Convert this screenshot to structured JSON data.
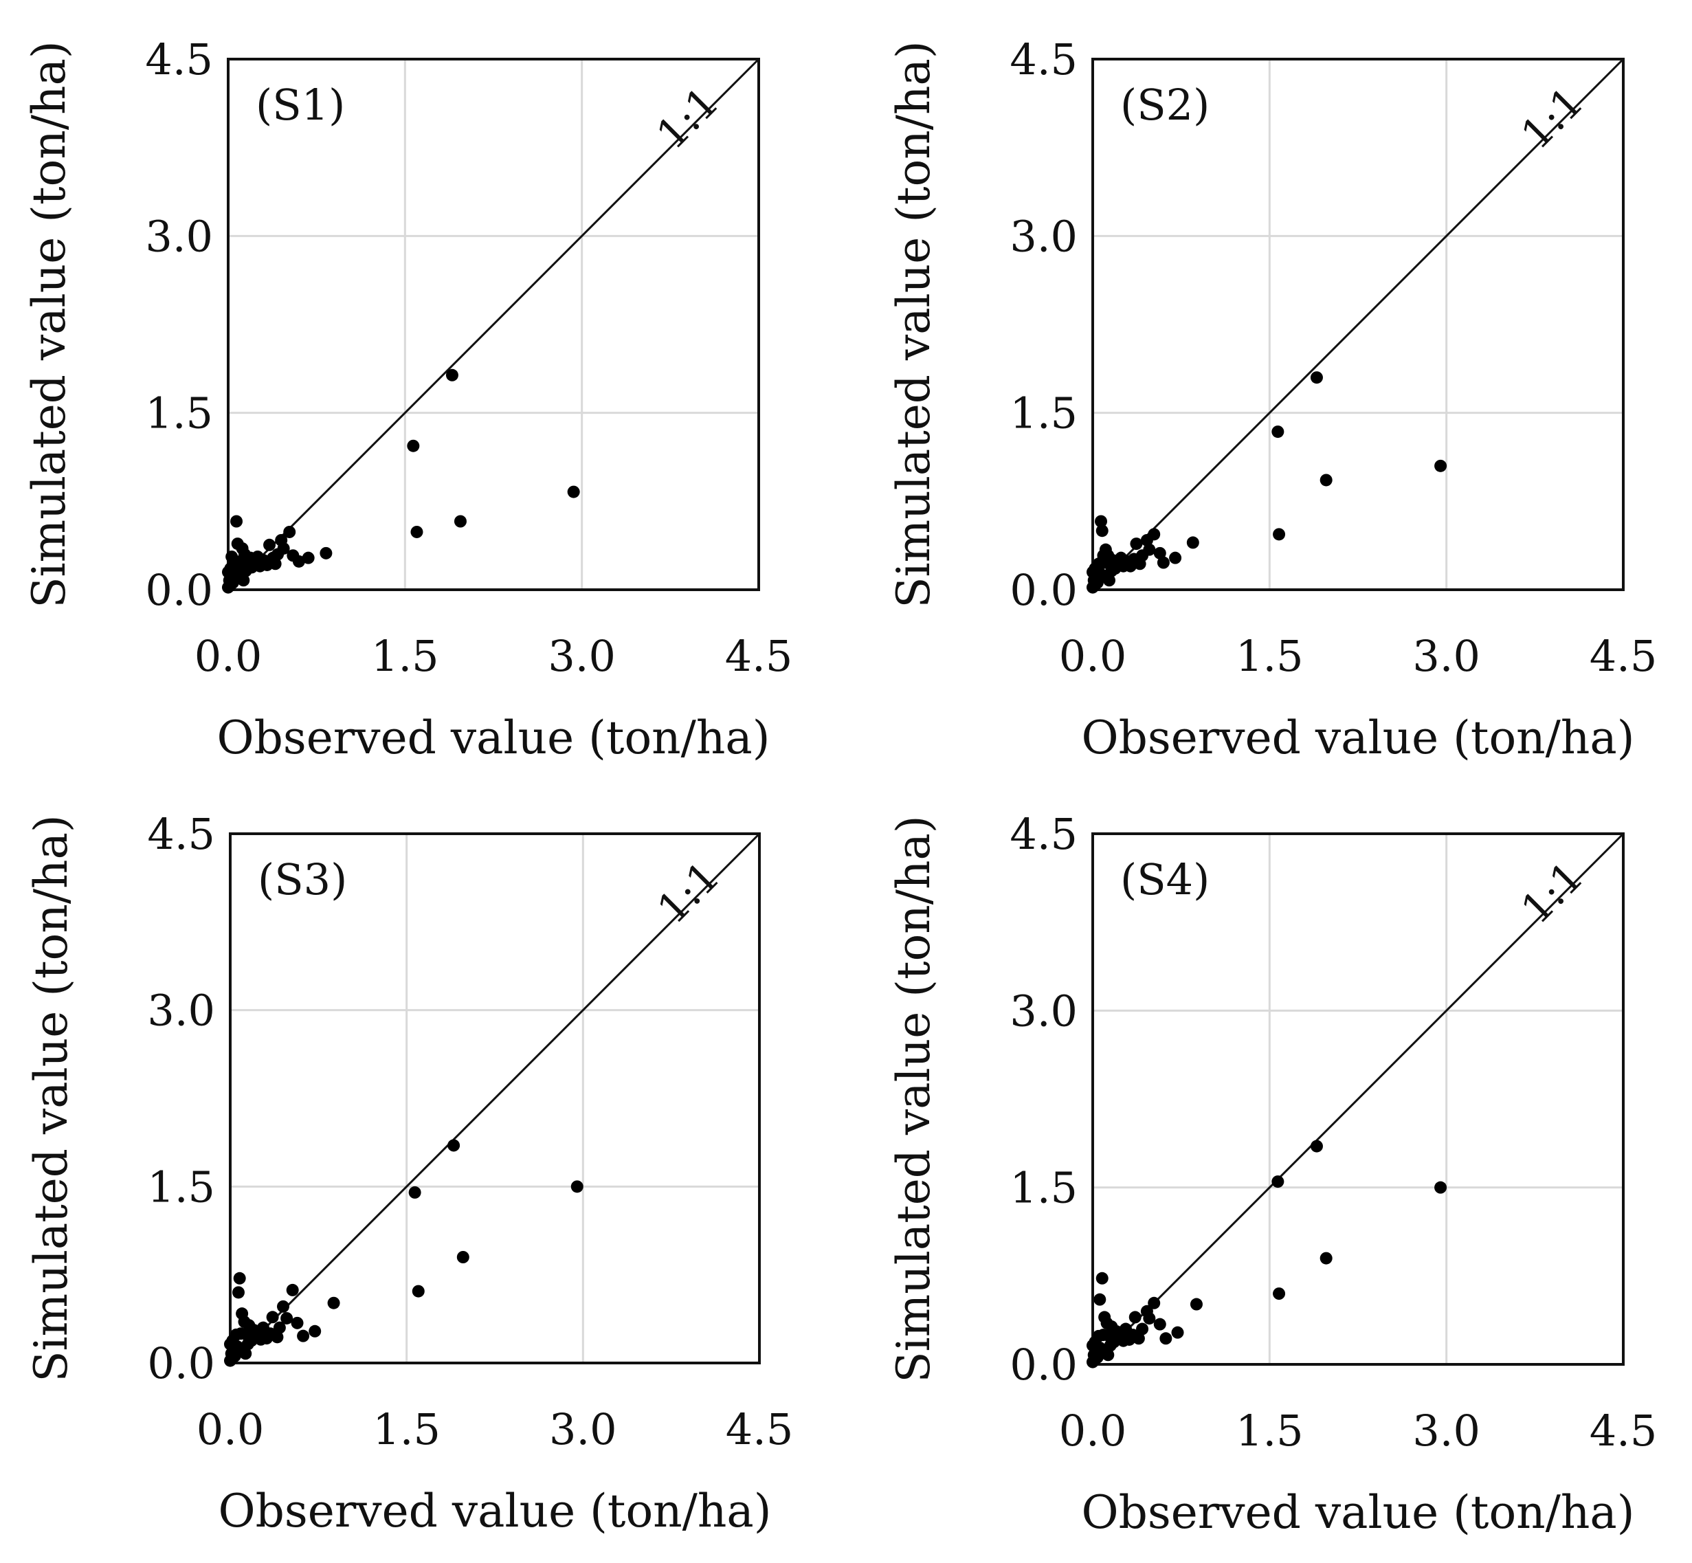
{
  "figure": {
    "one_to_one_label": "1:1",
    "x_ticks": [
      "0.0",
      "1.5",
      "3.0",
      "4.5"
    ],
    "y_ticks": [
      "0.0",
      "1.5",
      "3.0",
      "4.5"
    ]
  },
  "chart_data": [
    {
      "type": "scatter",
      "panel_label": "(S1)",
      "xlabel": "Observed value (ton/ha)",
      "ylabel": "Simulated value (ton/ha)",
      "xlim": [
        0,
        4.5
      ],
      "ylim": [
        0,
        4.5
      ],
      "grid": true,
      "reference_line": "1:1",
      "points": [
        [
          1.9,
          1.82
        ],
        [
          1.57,
          1.22
        ],
        [
          2.93,
          0.83
        ],
        [
          1.97,
          0.58
        ],
        [
          1.6,
          0.49
        ],
        [
          0.83,
          0.31
        ],
        [
          0.68,
          0.27
        ],
        [
          0.6,
          0.24
        ],
        [
          0.55,
          0.29
        ],
        [
          0.52,
          0.49
        ],
        [
          0.47,
          0.35
        ],
        [
          0.45,
          0.42
        ],
        [
          0.42,
          0.3
        ],
        [
          0.4,
          0.22
        ],
        [
          0.38,
          0.27
        ],
        [
          0.35,
          0.38
        ],
        [
          0.33,
          0.21
        ],
        [
          0.3,
          0.25
        ],
        [
          0.27,
          0.2
        ],
        [
          0.25,
          0.28
        ],
        [
          0.22,
          0.23
        ],
        [
          0.2,
          0.19
        ],
        [
          0.18,
          0.26
        ],
        [
          0.16,
          0.22
        ],
        [
          0.14,
          0.3
        ],
        [
          0.12,
          0.35
        ],
        [
          0.1,
          0.24
        ],
        [
          0.09,
          0.18
        ],
        [
          0.08,
          0.39
        ],
        [
          0.07,
          0.58
        ],
        [
          0.06,
          0.14
        ],
        [
          0.05,
          0.1
        ],
        [
          0.05,
          0.22
        ],
        [
          0.04,
          0.06
        ],
        [
          0.03,
          0.12
        ],
        [
          0.02,
          0.04
        ],
        [
          0.02,
          0.18
        ],
        [
          0.01,
          0.08
        ],
        [
          0.0,
          0.02
        ],
        [
          0.0,
          0.15
        ],
        [
          0.11,
          0.12
        ],
        [
          0.15,
          0.16
        ],
        [
          0.19,
          0.27
        ],
        [
          0.03,
          0.28
        ],
        [
          0.13,
          0.08
        ]
      ]
    },
    {
      "type": "scatter",
      "panel_label": "(S2)",
      "xlabel": "Observed value (ton/ha)",
      "ylabel": "Simulated value (ton/ha)",
      "xlim": [
        0,
        4.5
      ],
      "ylim": [
        0,
        4.5
      ],
      "grid": true,
      "reference_line": "1:1",
      "points": [
        [
          1.9,
          1.8
        ],
        [
          1.57,
          1.34
        ],
        [
          2.95,
          1.05
        ],
        [
          1.98,
          0.93
        ],
        [
          1.58,
          0.47
        ],
        [
          0.85,
          0.4
        ],
        [
          0.7,
          0.27
        ],
        [
          0.6,
          0.23
        ],
        [
          0.57,
          0.31
        ],
        [
          0.52,
          0.47
        ],
        [
          0.48,
          0.34
        ],
        [
          0.46,
          0.42
        ],
        [
          0.42,
          0.29
        ],
        [
          0.4,
          0.22
        ],
        [
          0.37,
          0.39
        ],
        [
          0.35,
          0.26
        ],
        [
          0.32,
          0.2
        ],
        [
          0.29,
          0.24
        ],
        [
          0.26,
          0.2
        ],
        [
          0.24,
          0.27
        ],
        [
          0.21,
          0.22
        ],
        [
          0.19,
          0.18
        ],
        [
          0.17,
          0.25
        ],
        [
          0.15,
          0.21
        ],
        [
          0.13,
          0.29
        ],
        [
          0.11,
          0.34
        ],
        [
          0.1,
          0.23
        ],
        [
          0.08,
          0.5
        ],
        [
          0.07,
          0.58
        ],
        [
          0.06,
          0.14
        ],
        [
          0.05,
          0.1
        ],
        [
          0.05,
          0.22
        ],
        [
          0.04,
          0.06
        ],
        [
          0.03,
          0.12
        ],
        [
          0.02,
          0.04
        ],
        [
          0.02,
          0.18
        ],
        [
          0.01,
          0.08
        ],
        [
          0.0,
          0.02
        ],
        [
          0.0,
          0.15
        ],
        [
          0.12,
          0.12
        ],
        [
          0.16,
          0.16
        ],
        [
          0.09,
          0.29
        ],
        [
          0.14,
          0.08
        ]
      ]
    },
    {
      "type": "scatter",
      "panel_label": "(S3)",
      "xlabel": "Observed value (ton/ha)",
      "ylabel": "Simulated value (ton/ha)",
      "xlim": [
        0,
        4.5
      ],
      "ylim": [
        0,
        4.5
      ],
      "grid": true,
      "reference_line": "1:1",
      "points": [
        [
          1.9,
          1.85
        ],
        [
          2.95,
          1.5
        ],
        [
          1.57,
          1.45
        ],
        [
          1.98,
          0.9
        ],
        [
          1.6,
          0.61
        ],
        [
          0.88,
          0.51
        ],
        [
          0.72,
          0.27
        ],
        [
          0.62,
          0.23
        ],
        [
          0.57,
          0.34
        ],
        [
          0.53,
          0.62
        ],
        [
          0.48,
          0.38
        ],
        [
          0.45,
          0.48
        ],
        [
          0.42,
          0.3
        ],
        [
          0.4,
          0.22
        ],
        [
          0.36,
          0.39
        ],
        [
          0.34,
          0.25
        ],
        [
          0.31,
          0.21
        ],
        [
          0.28,
          0.3
        ],
        [
          0.26,
          0.2
        ],
        [
          0.23,
          0.27
        ],
        [
          0.21,
          0.23
        ],
        [
          0.18,
          0.19
        ],
        [
          0.16,
          0.32
        ],
        [
          0.14,
          0.24
        ],
        [
          0.12,
          0.35
        ],
        [
          0.1,
          0.42
        ],
        [
          0.09,
          0.25
        ],
        [
          0.08,
          0.72
        ],
        [
          0.07,
          0.6
        ],
        [
          0.06,
          0.14
        ],
        [
          0.05,
          0.1
        ],
        [
          0.05,
          0.24
        ],
        [
          0.04,
          0.06
        ],
        [
          0.03,
          0.13
        ],
        [
          0.02,
          0.04
        ],
        [
          0.02,
          0.19
        ],
        [
          0.01,
          0.08
        ],
        [
          0.0,
          0.02
        ],
        [
          0.0,
          0.16
        ],
        [
          0.11,
          0.12
        ],
        [
          0.15,
          0.16
        ],
        [
          0.2,
          0.28
        ],
        [
          0.13,
          0.08
        ]
      ]
    },
    {
      "type": "scatter",
      "panel_label": "(S4)",
      "xlabel": "Observed value (ton/ha)",
      "ylabel": "Simulated value (ton/ha)",
      "xlim": [
        0,
        4.5
      ],
      "ylim": [
        0,
        4.5
      ],
      "grid": true,
      "reference_line": "1:1",
      "points": [
        [
          1.9,
          1.85
        ],
        [
          1.57,
          1.55
        ],
        [
          2.95,
          1.5
        ],
        [
          1.98,
          0.9
        ],
        [
          1.58,
          0.6
        ],
        [
          0.88,
          0.51
        ],
        [
          0.72,
          0.27
        ],
        [
          0.62,
          0.22
        ],
        [
          0.57,
          0.34
        ],
        [
          0.52,
          0.52
        ],
        [
          0.48,
          0.39
        ],
        [
          0.46,
          0.45
        ],
        [
          0.42,
          0.3
        ],
        [
          0.39,
          0.22
        ],
        [
          0.36,
          0.4
        ],
        [
          0.34,
          0.25
        ],
        [
          0.31,
          0.21
        ],
        [
          0.28,
          0.3
        ],
        [
          0.26,
          0.2
        ],
        [
          0.23,
          0.27
        ],
        [
          0.21,
          0.23
        ],
        [
          0.18,
          0.19
        ],
        [
          0.16,
          0.32
        ],
        [
          0.14,
          0.24
        ],
        [
          0.12,
          0.35
        ],
        [
          0.1,
          0.4
        ],
        [
          0.09,
          0.25
        ],
        [
          0.08,
          0.73
        ],
        [
          0.06,
          0.55
        ],
        [
          0.06,
          0.14
        ],
        [
          0.05,
          0.1
        ],
        [
          0.05,
          0.24
        ],
        [
          0.04,
          0.06
        ],
        [
          0.03,
          0.13
        ],
        [
          0.02,
          0.04
        ],
        [
          0.02,
          0.19
        ],
        [
          0.01,
          0.08
        ],
        [
          0.0,
          0.02
        ],
        [
          0.0,
          0.16
        ],
        [
          0.11,
          0.12
        ],
        [
          0.15,
          0.16
        ],
        [
          0.2,
          0.28
        ],
        [
          0.13,
          0.08
        ]
      ]
    }
  ]
}
